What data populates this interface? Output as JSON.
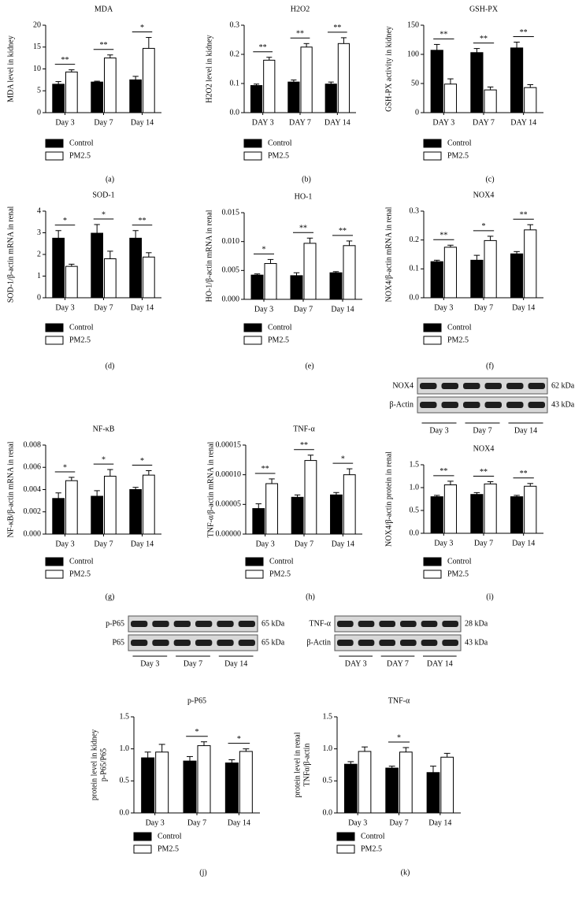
{
  "chart_data": [
    {
      "type": "bar",
      "title": "MDA",
      "ylabel": "MDA level in kidney",
      "panel": "(a)",
      "categories": [
        "Day 3",
        "Day 7",
        "Day 14"
      ],
      "ylim": [
        0,
        20
      ],
      "yticks": [
        0,
        5,
        10,
        15,
        20
      ],
      "series": [
        {
          "name": "Control",
          "color": "#000000",
          "values": [
            6.5,
            7,
            7.5
          ],
          "errors": [
            0.6,
            0.2,
            0.8
          ]
        },
        {
          "name": "PM2.5",
          "color": "#ffffff",
          "values": [
            9.3,
            12.5,
            14.7
          ],
          "errors": [
            0.5,
            0.7,
            2.5
          ]
        }
      ],
      "significance": [
        "**",
        "**",
        "*"
      ]
    },
    {
      "type": "bar",
      "title": "H2O2",
      "ylabel": "H2O2 level in kidney",
      "panel": "(b)",
      "categories": [
        "DAY 3",
        "DAY 7",
        "DAY 14"
      ],
      "ylim": [
        0,
        0.3
      ],
      "yticks": [
        {
          "value": 0,
          "label": "0.0"
        },
        0.1,
        0.2,
        0.3
      ],
      "series": [
        {
          "name": "Control",
          "color": "#000000",
          "values": [
            0.093,
            0.105,
            0.098
          ],
          "errors": [
            0.005,
            0.007,
            0.007
          ]
        },
        {
          "name": "PM2.5",
          "color": "#ffffff",
          "values": [
            0.18,
            0.225,
            0.237
          ],
          "errors": [
            0.01,
            0.012,
            0.02
          ]
        }
      ],
      "significance": [
        "**",
        "**",
        "**"
      ]
    },
    {
      "type": "bar",
      "title": "GSH-PX",
      "ylabel": "GSH-PX activity in kidney",
      "panel": "(c)",
      "categories": [
        "DAY 3",
        "DAY 7",
        "DAY 14"
      ],
      "ylim": [
        0,
        150
      ],
      "yticks": [
        0,
        50,
        100,
        150
      ],
      "series": [
        {
          "name": "Control",
          "color": "#000000",
          "values": [
            107,
            103,
            111
          ],
          "errors": [
            10,
            7,
            10
          ]
        },
        {
          "name": "PM2.5",
          "color": "#ffffff",
          "values": [
            49,
            39,
            43
          ],
          "errors": [
            9,
            5,
            5
          ]
        }
      ],
      "significance": [
        "**",
        "**",
        "**"
      ]
    },
    {
      "type": "bar",
      "title": "SOD-1",
      "ylabel": "SOD-1/β-actin mRNA in renal",
      "panel": "(d)",
      "categories": [
        "Day 3",
        "Day 7",
        "Day 14"
      ],
      "ylim": [
        0,
        4
      ],
      "yticks": [
        0,
        1,
        2,
        3,
        4
      ],
      "series": [
        {
          "name": "Control",
          "color": "#000000",
          "values": [
            2.75,
            2.98,
            2.75
          ],
          "errors": [
            0.35,
            0.4,
            0.35
          ]
        },
        {
          "name": "PM2.5",
          "color": "#ffffff",
          "values": [
            1.45,
            1.8,
            1.88
          ],
          "errors": [
            0.1,
            0.35,
            0.2
          ]
        }
      ],
      "significance": [
        "*",
        "*",
        "**"
      ]
    },
    {
      "type": "bar",
      "title": "HO-1",
      "ylabel": "HO-1/β-actin mRNA in renal",
      "panel": "(e)",
      "categories": [
        "Day 3",
        "Day 7",
        "Day 14"
      ],
      "ylim": [
        0,
        0.015
      ],
      "yticks": [
        {
          "value": 0,
          "label": "0.000"
        },
        {
          "value": 0.005,
          "label": "0.005"
        },
        {
          "value": 0.01,
          "label": "0.010"
        },
        {
          "value": 0.015,
          "label": "0.015"
        }
      ],
      "series": [
        {
          "name": "Control",
          "color": "#000000",
          "values": [
            0.0042,
            0.0041,
            0.0046
          ],
          "errors": [
            0.0002,
            0.0005,
            0.0002
          ]
        },
        {
          "name": "PM2.5",
          "color": "#ffffff",
          "values": [
            0.0062,
            0.0097,
            0.0093
          ],
          "errors": [
            0.0007,
            0.0009,
            0.0008
          ]
        }
      ],
      "significance": [
        "*",
        "**",
        "**"
      ]
    },
    {
      "type": "bar",
      "title": "NOX4",
      "ylabel": "NOX4/β-actin mRNA in renal",
      "panel": "(f)",
      "categories": [
        "Day 3",
        "Day 7",
        "Day 14"
      ],
      "ylim": [
        0,
        0.3
      ],
      "yticks": [
        {
          "value": 0,
          "label": "0.0"
        },
        0.1,
        0.2,
        0.3
      ],
      "series": [
        {
          "name": "Control",
          "color": "#000000",
          "values": [
            0.125,
            0.13,
            0.152
          ],
          "errors": [
            0.005,
            0.017,
            0.008
          ]
        },
        {
          "name": "PM2.5",
          "color": "#ffffff",
          "values": [
            0.175,
            0.198,
            0.235
          ],
          "errors": [
            0.007,
            0.015,
            0.018
          ]
        }
      ],
      "significance": [
        "**",
        "*",
        "**"
      ]
    },
    {
      "type": "bar",
      "title": "NF-κB",
      "ylabel": "NF-κB/β-actin mRNA in renal",
      "panel": "(g)",
      "categories": [
        "Day 3",
        "Day 7",
        "Day 14"
      ],
      "ylim": [
        0,
        0.008
      ],
      "yticks": [
        {
          "value": 0,
          "label": "0.000"
        },
        {
          "value": 0.002,
          "label": "0.002"
        },
        {
          "value": 0.004,
          "label": "0.004"
        },
        {
          "value": 0.006,
          "label": "0.006"
        },
        {
          "value": 0.008,
          "label": "0.008"
        }
      ],
      "series": [
        {
          "name": "Control",
          "color": "#000000",
          "values": [
            0.0032,
            0.0034,
            0.004
          ],
          "errors": [
            0.0005,
            0.0005,
            0.0002
          ]
        },
        {
          "name": "PM2.5",
          "color": "#ffffff",
          "values": [
            0.0048,
            0.0052,
            0.0053
          ],
          "errors": [
            0.0003,
            0.0006,
            0.0004
          ]
        }
      ],
      "significance": [
        "*",
        "*",
        "*"
      ]
    },
    {
      "type": "bar",
      "title": "TNF-α",
      "ylabel": "TNF-α/β-actin mRNA in renal",
      "panel": "(h)",
      "categories": [
        "Day 3",
        "Day 7",
        "Day 14"
      ],
      "ylim": [
        0,
        0.00015
      ],
      "yticks": [
        {
          "value": 0,
          "label": "0.00000"
        },
        {
          "value": 5e-05,
          "label": "0.00005"
        },
        {
          "value": 0.0001,
          "label": "0.00010"
        },
        {
          "value": 0.00015,
          "label": "0.00015"
        }
      ],
      "series": [
        {
          "name": "Control",
          "color": "#000000",
          "values": [
            4.3e-05,
            6.2e-05,
            6.6e-05
          ],
          "errors": [
            8e-06,
            4e-06,
            4e-06
          ]
        },
        {
          "name": "PM2.5",
          "color": "#ffffff",
          "values": [
            8.5e-05,
            0.000124,
            0.0001
          ],
          "errors": [
            8e-06,
            9e-06,
            1e-05
          ]
        }
      ],
      "significance": [
        "**",
        "**",
        "*"
      ]
    },
    {
      "type": "bar",
      "title": "NOX4",
      "ylabel": "NOX4/β-actin protein in renal",
      "panel": "(i)",
      "categories": [
        "Day 3",
        "Day 7",
        "Day 14"
      ],
      "ylim": [
        0,
        1.5
      ],
      "yticks": [
        {
          "value": 0,
          "label": "0.0"
        },
        0.5,
        {
          "value": 1,
          "label": "1.0"
        },
        1.5
      ],
      "series": [
        {
          "name": "Control",
          "color": "#000000",
          "values": [
            0.8,
            0.85,
            0.8
          ],
          "errors": [
            0.03,
            0.04,
            0.03
          ]
        },
        {
          "name": "PM2.5",
          "color": "#ffffff",
          "values": [
            1.06,
            1.08,
            1.03
          ],
          "errors": [
            0.08,
            0.05,
            0.06
          ]
        }
      ],
      "significance": [
        "**",
        "**",
        "**"
      ]
    },
    {
      "type": "bar",
      "title": "p-P65",
      "ylabel": [
        "p-P65/P65",
        "protein level in kidney"
      ],
      "panel": "(j)",
      "categories": [
        "Day 3",
        "Day 7",
        "Day 14"
      ],
      "ylim": [
        0,
        1.5
      ],
      "yticks": [
        {
          "value": 0,
          "label": "0.0"
        },
        0.5,
        {
          "value": 1,
          "label": "1.0"
        },
        1.5
      ],
      "series": [
        {
          "name": "Control",
          "color": "#000000",
          "values": [
            0.86,
            0.81,
            0.78
          ],
          "errors": [
            0.09,
            0.07,
            0.05
          ]
        },
        {
          "name": "PM2.5",
          "color": "#ffffff",
          "values": [
            0.95,
            1.05,
            0.96
          ],
          "errors": [
            0.12,
            0.06,
            0.04
          ]
        }
      ],
      "significance": [
        null,
        "*",
        "*"
      ]
    },
    {
      "type": "bar",
      "title": "TNF-α",
      "ylabel": [
        "TNFα/β-actin",
        "protein level in renal"
      ],
      "panel": "(k)",
      "categories": [
        "Day 3",
        "Day 7",
        "Day 14"
      ],
      "ylim": [
        0,
        1.5
      ],
      "yticks": [
        {
          "value": 0,
          "label": "0.0"
        },
        0.5,
        {
          "value": 1,
          "label": "1.0"
        },
        1.5
      ],
      "series": [
        {
          "name": "Control",
          "color": "#000000",
          "values": [
            0.76,
            0.7,
            0.63
          ],
          "errors": [
            0.04,
            0.03,
            0.1
          ]
        },
        {
          "name": "PM2.5",
          "color": "#ffffff",
          "values": [
            0.96,
            0.95,
            0.87
          ],
          "errors": [
            0.07,
            0.07,
            0.06
          ]
        }
      ],
      "significance": [
        null,
        "*",
        null
      ]
    }
  ],
  "blots": [
    {
      "rows": [
        {
          "label": "NOX4",
          "kda": "62 kDa"
        },
        {
          "label": "β-Actin",
          "kda": "43 kDa"
        }
      ],
      "days": [
        "Day 3",
        "Day 7",
        "Day 14"
      ]
    },
    {
      "rows": [
        {
          "label": "p-P65",
          "kda": "65 kDa"
        },
        {
          "label": "P65",
          "kda": "65 kDa"
        }
      ],
      "days": [
        "Day 3",
        "Day 7",
        "Day 14"
      ]
    },
    {
      "rows": [
        {
          "label": "TNF-α",
          "kda": "28 kDa"
        },
        {
          "label": "β-Actin",
          "kda": "43 kDa"
        }
      ],
      "days": [
        "DAY 3",
        "DAY 7",
        "DAY 14"
      ]
    }
  ]
}
